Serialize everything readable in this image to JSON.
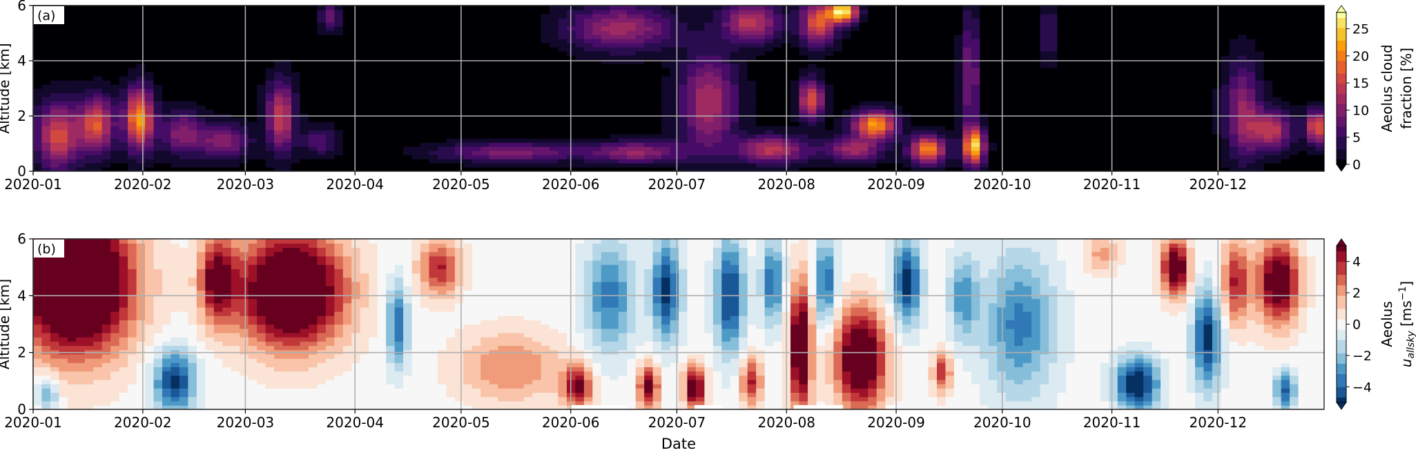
{
  "figure": {
    "xlabel": "Date"
  },
  "chart_data": [
    {
      "type": "heatmap",
      "panel_label": "(a)",
      "ylabel": "Altitude [km]",
      "colorbar_label_lines": [
        "Aeolus cloud",
        "fraction [%]"
      ],
      "colorbar_ticks": [
        0,
        5,
        10,
        15,
        20,
        25
      ],
      "colorbar_range": [
        0,
        28
      ],
      "colormap": "inferno",
      "color_stops": [
        "#000004",
        "#1b0c41",
        "#4a0c6b",
        "#781c6d",
        "#a52c60",
        "#cf4446",
        "#ed6925",
        "#fb9b06",
        "#f7d13d",
        "#fcffa4"
      ],
      "ylim": [
        0,
        6
      ],
      "yticks": [
        0,
        2,
        4,
        6
      ],
      "xlim": [
        "2020-01-01",
        "2020-12-31"
      ],
      "xticks": [
        "2020-01",
        "2020-02",
        "2020-03",
        "2020-04",
        "2020-05",
        "2020-06",
        "2020-07",
        "2020-08",
        "2020-09",
        "2020-10",
        "2020-11",
        "2020-12"
      ],
      "grid": true,
      "features": [
        {
          "center": "2020-01-08",
          "altitude": 1.3,
          "width_days": 12,
          "height_km": 2.4,
          "value": 16
        },
        {
          "center": "2020-01-19",
          "altitude": 1.7,
          "width_days": 10,
          "height_km": 2.0,
          "value": 17
        },
        {
          "center": "2020-01-31",
          "altitude": 1.9,
          "width_days": 8,
          "height_km": 2.2,
          "value": 22
        },
        {
          "center": "2020-02-12",
          "altitude": 1.4,
          "width_days": 12,
          "height_km": 1.6,
          "value": 10
        },
        {
          "center": "2020-02-24",
          "altitude": 1.1,
          "width_days": 14,
          "height_km": 1.2,
          "value": 11
        },
        {
          "center": "2020-03-11",
          "altitude": 2.0,
          "width_days": 8,
          "height_km": 2.5,
          "value": 15
        },
        {
          "center": "2020-03-22",
          "altitude": 1.1,
          "width_days": 10,
          "height_km": 1.0,
          "value": 7
        },
        {
          "center": "2020-03-25",
          "altitude": 5.6,
          "width_days": 6,
          "height_km": 1.0,
          "value": 8
        },
        {
          "center": "2020-05-15",
          "altitude": 0.7,
          "width_days": 40,
          "height_km": 0.7,
          "value": 10
        },
        {
          "center": "2020-06-15",
          "altitude": 5.2,
          "width_days": 30,
          "height_km": 1.6,
          "value": 12
        },
        {
          "center": "2020-06-20",
          "altitude": 0.7,
          "width_days": 26,
          "height_km": 0.8,
          "value": 11
        },
        {
          "center": "2020-07-10",
          "altitude": 2.5,
          "width_days": 16,
          "height_km": 3.5,
          "value": 13
        },
        {
          "center": "2020-07-22",
          "altitude": 5.4,
          "width_days": 16,
          "height_km": 1.4,
          "value": 14
        },
        {
          "center": "2020-07-28",
          "altitude": 0.8,
          "width_days": 20,
          "height_km": 1.0,
          "value": 14
        },
        {
          "center": "2020-08-08",
          "altitude": 2.6,
          "width_days": 7,
          "height_km": 1.4,
          "value": 17
        },
        {
          "center": "2020-08-10",
          "altitude": 5.4,
          "width_days": 10,
          "height_km": 1.6,
          "value": 17
        },
        {
          "center": "2020-08-17",
          "altitude": 5.8,
          "width_days": 8,
          "height_km": 0.8,
          "value": 27
        },
        {
          "center": "2020-08-26",
          "altitude": 1.7,
          "width_days": 12,
          "height_km": 1.0,
          "value": 22
        },
        {
          "center": "2020-08-20",
          "altitude": 0.8,
          "width_days": 16,
          "height_km": 0.9,
          "value": 12
        },
        {
          "center": "2020-09-10",
          "altitude": 0.8,
          "width_days": 10,
          "height_km": 1.0,
          "value": 21
        },
        {
          "center": "2020-09-23",
          "altitude": 0.9,
          "width_days": 6,
          "height_km": 1.3,
          "value": 24
        },
        {
          "center": "2020-09-22",
          "altitude": 3.5,
          "width_days": 5,
          "height_km": 4.5,
          "value": 10
        },
        {
          "center": "2020-10-14",
          "altitude": 5.0,
          "width_days": 5,
          "height_km": 2.0,
          "value": 6
        },
        {
          "center": "2020-12-08",
          "altitude": 2.2,
          "width_days": 10,
          "height_km": 3.5,
          "value": 11
        },
        {
          "center": "2020-12-16",
          "altitude": 1.5,
          "width_days": 12,
          "height_km": 1.4,
          "value": 14
        },
        {
          "center": "2020-12-29",
          "altitude": 1.6,
          "width_days": 6,
          "height_km": 1.2,
          "value": 18
        }
      ]
    },
    {
      "type": "heatmap",
      "panel_label": "(b)",
      "ylabel": "Altitude [km]",
      "colorbar_label_lines": [
        "Aeolus",
        "u_allsky [ms^-1]"
      ],
      "colorbar_label_parts": {
        "prefix": "u",
        "subscript": "allsky",
        "unit_open": " [ms",
        "unit_exponent": "−1",
        "unit_close": "]"
      },
      "colorbar_ticks": [
        -4,
        -2,
        0,
        2,
        4
      ],
      "colorbar_range": [
        -5,
        5
      ],
      "colormap": "RdBu_r",
      "color_stops": [
        "#053061",
        "#2166ac",
        "#4393c3",
        "#92c5de",
        "#d1e5f0",
        "#f7f7f7",
        "#fddbc7",
        "#f4a582",
        "#d6604d",
        "#b2182b",
        "#67001f"
      ],
      "ylim": [
        0,
        6
      ],
      "yticks": [
        0,
        2,
        4,
        6
      ],
      "xlim": [
        "2020-01-01",
        "2020-12-31"
      ],
      "xticks": [
        "2020-01",
        "2020-02",
        "2020-03",
        "2020-04",
        "2020-05",
        "2020-06",
        "2020-07",
        "2020-08",
        "2020-09",
        "2020-10",
        "2020-11",
        "2020-12"
      ],
      "grid": true,
      "features": [
        {
          "center": "2020-01-13",
          "altitude": 4.5,
          "width_days": 32,
          "height_km": 5.0,
          "value": 9
        },
        {
          "center": "2020-02-10",
          "altitude": 1.0,
          "width_days": 12,
          "height_km": 2.2,
          "value": -5
        },
        {
          "center": "2020-01-05",
          "altitude": 0.6,
          "width_days": 6,
          "height_km": 1.2,
          "value": -3
        },
        {
          "center": "2020-02-22",
          "altitude": 4.6,
          "width_days": 10,
          "height_km": 3.0,
          "value": 5
        },
        {
          "center": "2020-03-14",
          "altitude": 4.2,
          "width_days": 30,
          "height_km": 4.0,
          "value": 8
        },
        {
          "center": "2020-04-13",
          "altitude": 3.0,
          "width_days": 6,
          "height_km": 3.0,
          "value": -4
        },
        {
          "center": "2020-04-25",
          "altitude": 5.0,
          "width_days": 12,
          "height_km": 2.0,
          "value": 4
        },
        {
          "center": "2020-05-15",
          "altitude": 1.5,
          "width_days": 30,
          "height_km": 2.5,
          "value": 2.5
        },
        {
          "center": "2020-06-03",
          "altitude": 0.8,
          "width_days": 8,
          "height_km": 1.5,
          "value": 5
        },
        {
          "center": "2020-06-12",
          "altitude": 4.0,
          "width_days": 14,
          "height_km": 4.0,
          "value": -3.5
        },
        {
          "center": "2020-06-23",
          "altitude": 0.8,
          "width_days": 6,
          "height_km": 1.6,
          "value": 5
        },
        {
          "center": "2020-06-28",
          "altitude": 4.2,
          "width_days": 8,
          "height_km": 3.5,
          "value": -5
        },
        {
          "center": "2020-07-06",
          "altitude": 0.8,
          "width_days": 6,
          "height_km": 1.5,
          "value": 6
        },
        {
          "center": "2020-07-16",
          "altitude": 4.0,
          "width_days": 8,
          "height_km": 4.0,
          "value": -5
        },
        {
          "center": "2020-07-22",
          "altitude": 1.0,
          "width_days": 6,
          "height_km": 1.8,
          "value": 4
        },
        {
          "center": "2020-07-28",
          "altitude": 4.5,
          "width_days": 6,
          "height_km": 3.0,
          "value": -4
        },
        {
          "center": "2020-08-05",
          "altitude": 2.2,
          "width_days": 6,
          "height_km": 4.5,
          "value": 7
        },
        {
          "center": "2020-08-12",
          "altitude": 4.5,
          "width_days": 6,
          "height_km": 3.0,
          "value": -4
        },
        {
          "center": "2020-08-22",
          "altitude": 1.8,
          "width_days": 14,
          "height_km": 3.5,
          "value": 7
        },
        {
          "center": "2020-09-04",
          "altitude": 4.5,
          "width_days": 8,
          "height_km": 3.0,
          "value": -5
        },
        {
          "center": "2020-09-14",
          "altitude": 1.3,
          "width_days": 5,
          "height_km": 1.4,
          "value": 4
        },
        {
          "center": "2020-09-20",
          "altitude": 4.0,
          "width_days": 8,
          "height_km": 3.0,
          "value": -3
        },
        {
          "center": "2020-10-06",
          "altitude": 3.0,
          "width_days": 20,
          "height_km": 5.0,
          "value": -3.5
        },
        {
          "center": "2020-10-29",
          "altitude": 5.5,
          "width_days": 10,
          "height_km": 1.4,
          "value": 2
        },
        {
          "center": "2020-11-08",
          "altitude": 0.9,
          "width_days": 12,
          "height_km": 1.8,
          "value": -6
        },
        {
          "center": "2020-11-19",
          "altitude": 5.0,
          "width_days": 8,
          "height_km": 2.0,
          "value": 6
        },
        {
          "center": "2020-11-28",
          "altitude": 2.5,
          "width_days": 8,
          "height_km": 3.5,
          "value": -5
        },
        {
          "center": "2020-12-06",
          "altitude": 4.5,
          "width_days": 8,
          "height_km": 3.0,
          "value": 4
        },
        {
          "center": "2020-12-18",
          "altitude": 4.5,
          "width_days": 12,
          "height_km": 3.0,
          "value": 6
        },
        {
          "center": "2020-12-20",
          "altitude": 0.7,
          "width_days": 6,
          "height_km": 1.4,
          "value": -4
        }
      ],
      "masked_segments": [
        [
          "2020-06-01",
          "2020-06-17"
        ],
        [
          "2020-07-06",
          "2020-07-14"
        ],
        [
          "2020-08-03",
          "2020-08-17"
        ],
        [
          "2020-08-29",
          "2020-09-01"
        ]
      ]
    }
  ]
}
